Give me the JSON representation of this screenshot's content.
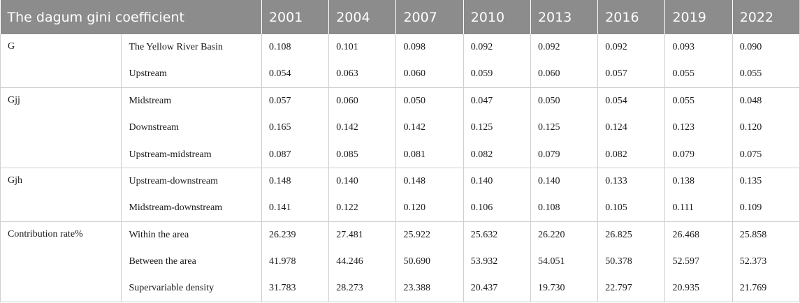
{
  "table": {
    "header": [
      "The dagum gini coefficient",
      "2001",
      "2004",
      "2007",
      "2010",
      "2013",
      "2016",
      "2019",
      "2022"
    ],
    "groups": [
      {
        "label": "G",
        "rows": [
          {
            "name": "The Yellow River Basin",
            "values": [
              "0.108",
              "0.101",
              "0.098",
              "0.092",
              "0.092",
              "0.092",
              "0.093",
              "0.090"
            ]
          },
          {
            "name": "Upstream",
            "values": [
              "0.054",
              "0.063",
              "0.060",
              "0.059",
              "0.060",
              "0.057",
              "0.055",
              "0.055"
            ]
          }
        ]
      },
      {
        "label": "Gjj",
        "rows": [
          {
            "name": "Midstream",
            "values": [
              "0.057",
              "0.060",
              "0.050",
              "0.047",
              "0.050",
              "0.054",
              "0.055",
              "0.048"
            ]
          },
          {
            "name": "Downstream",
            "values": [
              "0.165",
              "0.142",
              "0.142",
              "0.125",
              "0.125",
              "0.124",
              "0.123",
              "0.120"
            ]
          },
          {
            "name": "Upstream-midstream",
            "values": [
              "0.087",
              "0.085",
              "0.081",
              "0.082",
              "0.079",
              "0.082",
              "0.079",
              "0.075"
            ]
          }
        ]
      },
      {
        "label": "Gjh",
        "rows": [
          {
            "name": "Upstream-downstream",
            "values": [
              "0.148",
              "0.140",
              "0.148",
              "0.140",
              "0.140",
              "0.133",
              "0.138",
              "0.135"
            ]
          },
          {
            "name": "Midstream-downstream",
            "values": [
              "0.141",
              "0.122",
              "0.120",
              "0.106",
              "0.108",
              "0.105",
              "0.111",
              "0.109"
            ]
          }
        ]
      },
      {
        "label": "Contribution rate%",
        "rows": [
          {
            "name": "Within the area",
            "values": [
              "26.239",
              "27.481",
              "25.922",
              "25.632",
              "26.220",
              "26.825",
              "26.468",
              "25.858"
            ]
          },
          {
            "name": "Between the area",
            "values": [
              "41.978",
              "44.246",
              "50.690",
              "53.932",
              "54.051",
              "50.378",
              "52.597",
              "52.373"
            ]
          },
          {
            "name": "Supervariable density",
            "values": [
              "31.783",
              "28.273",
              "23.388",
              "20.437",
              "19.730",
              "22.797",
              "20.935",
              "21.769"
            ]
          }
        ]
      }
    ]
  }
}
